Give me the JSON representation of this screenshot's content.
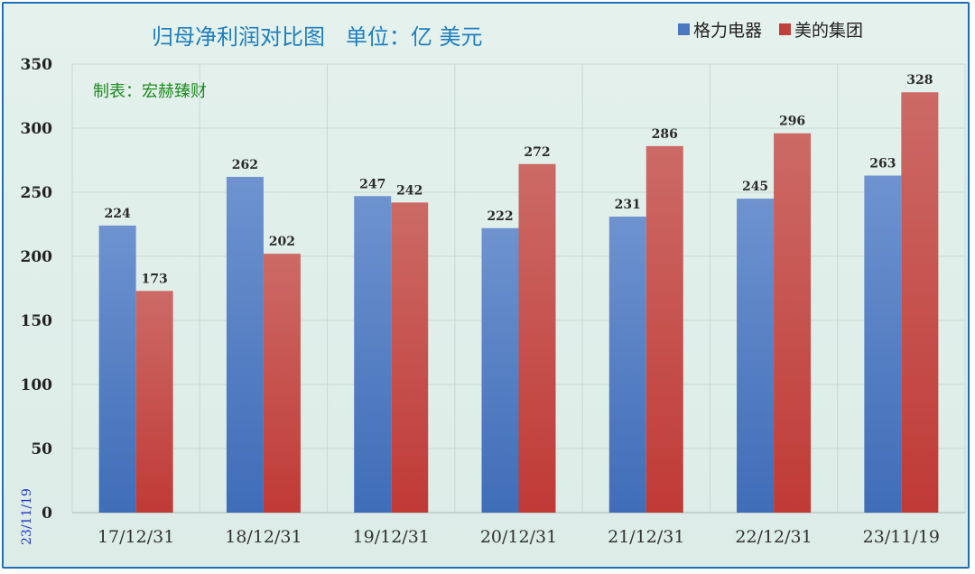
{
  "chart_data": {
    "type": "bar",
    "title": "归母净利润对比图   单位：亿 美元",
    "maker": "制表：宏赫臻财",
    "date_stamp": "23/11/19",
    "categories": [
      "17/12/31",
      "18/12/31",
      "19/12/31",
      "20/12/31",
      "21/12/31",
      "22/12/31",
      "23/11/19"
    ],
    "series": [
      {
        "name": "格力电器",
        "values": [
          224,
          262,
          247,
          222,
          231,
          245,
          263
        ],
        "color": "#4a78c0"
      },
      {
        "name": "美的集团",
        "values": [
          173,
          202,
          242,
          272,
          286,
          296,
          328
        ],
        "color": "#c0403c"
      }
    ],
    "ylim": [
      0,
      350
    ],
    "yticks": [
      0,
      50,
      100,
      150,
      200,
      250,
      300,
      350
    ],
    "grid": true,
    "legend_position": "top-right"
  }
}
